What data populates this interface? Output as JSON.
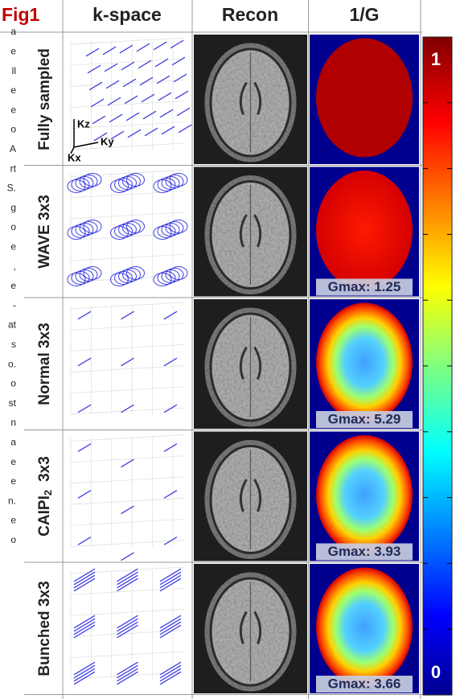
{
  "header": {
    "fig_label": "Fig1",
    "columns": [
      "k-space",
      "Recon",
      "1/G"
    ]
  },
  "rows": [
    {
      "label": "Fully sampled"
    },
    {
      "label": "WAVE 3x3",
      "gmax": "Gmax: 1.25"
    },
    {
      "label": "Normal 3x3",
      "gmax": "Gmax: 5.29"
    },
    {
      "label": "CAIPI",
      "label_sub": "2",
      "label_suffix": "3x3",
      "gmax": "Gmax: 3.93"
    },
    {
      "label": "Bunched 3x3",
      "gmax": "Gmax: 3.66"
    }
  ],
  "axes_labels": {
    "z": "Kz",
    "y": "Ky",
    "x": "Kx"
  },
  "colorbar": {
    "max_label": "1",
    "min_label": "0"
  },
  "side_text_fragments": [
    "a",
    "e",
    "ll",
    "e",
    "e",
    "o",
    "A",
    "rt",
    "S.",
    "g",
    "o",
    "e",
    ",",
    "e",
    "-",
    "at",
    "s",
    "o.",
    "o",
    "st",
    "n",
    "a",
    "e",
    "e",
    "n.",
    "e",
    "o"
  ]
}
